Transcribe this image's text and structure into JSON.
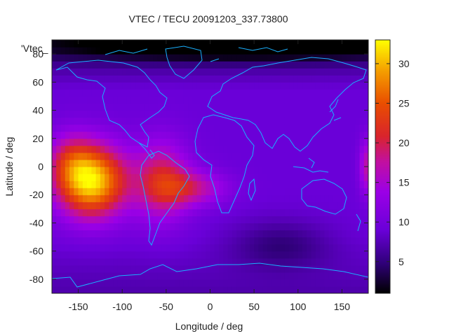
{
  "chart_data": {
    "type": "heatmap",
    "title": "VTEC / TECU 20091203_337.73800",
    "xlabel": "Longitude / deg",
    "ylabel": "Latitude / deg",
    "legend_label": "'Vtec_",
    "xlim": [
      -180,
      180
    ],
    "ylim": [
      -90,
      90
    ],
    "x_ticks": [
      -150,
      -100,
      -50,
      0,
      50,
      100,
      150
    ],
    "y_ticks": [
      -80,
      -60,
      -40,
      -20,
      0,
      20,
      40,
      60,
      80
    ],
    "colorbar": {
      "range": [
        1,
        33
      ],
      "ticks": [
        5,
        10,
        15,
        20,
        25,
        30
      ],
      "colormap": "gnuplot-pm3d-black-purple-red-yellow"
    },
    "features": [
      {
        "name": "pacific-maximum",
        "lon": -135,
        "lat": -10,
        "value": 32
      },
      {
        "name": "south-america-enhancement",
        "lon": -55,
        "lat": -10,
        "value": 20
      },
      {
        "name": "south-atlantic-tongue",
        "lon": -20,
        "lat": -15,
        "value": 17
      },
      {
        "name": "eastern-edge-enhancement",
        "lon": 178,
        "lat": 0,
        "value": 17
      },
      {
        "name": "arctic-minimum",
        "lon": 30,
        "lat": 85,
        "value": 2
      },
      {
        "name": "indian-ocean-south-minimum",
        "lon": 80,
        "lat": -55,
        "value": 5
      },
      {
        "name": "background",
        "value": 9
      }
    ],
    "overlay": "world-coastlines"
  }
}
